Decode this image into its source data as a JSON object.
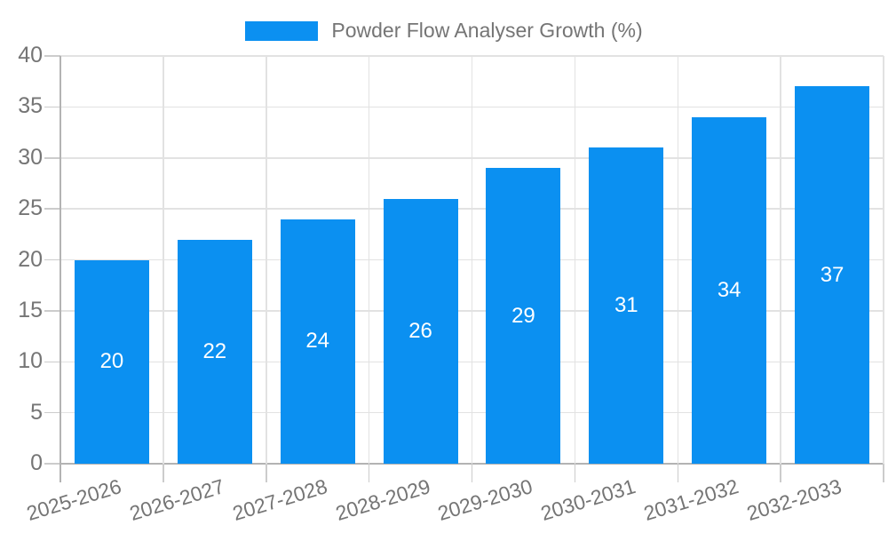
{
  "legend": {
    "label": "Powder Flow Analyser Growth (%)"
  },
  "chart_data": {
    "type": "bar",
    "title": "Powder Flow Analyser Growth (%)",
    "categories": [
      "2025-2026",
      "2026-2027",
      "2027-2028",
      "2028-2029",
      "2029-2030",
      "2030-2031",
      "2031-2032",
      "2032-2033"
    ],
    "values": [
      20,
      22,
      24,
      26,
      29,
      31,
      34,
      37
    ],
    "xlabel": "",
    "ylabel": "",
    "ylim": [
      0,
      40
    ],
    "ytick_step": 5,
    "yticks": [
      0,
      5,
      10,
      15,
      20,
      25,
      30,
      35,
      40
    ],
    "grid": true,
    "legend_position": "top-center",
    "bar_labels_shown": true,
    "x_tick_rotation_deg": -17,
    "colors": {
      "bar": "#0b90f1",
      "bar_label": "#ffffff",
      "axis_text": "#757575",
      "gridline": "#e2e2e2",
      "axis_line": "#b3b3b3",
      "tick": "#cccccc",
      "background": "#ffffff"
    }
  }
}
